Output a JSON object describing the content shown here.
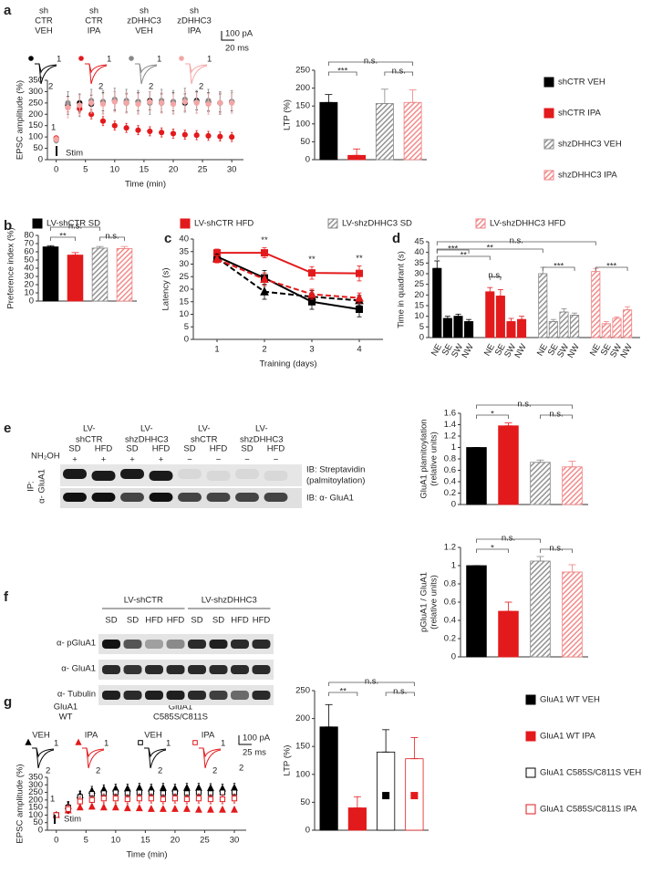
{
  "panels": [
    "a",
    "b",
    "c",
    "d",
    "e",
    "f",
    "g"
  ],
  "chart_data": [
    {
      "type": "line",
      "ylabel": "EPSC amplitude (%)",
      "xlabel": "Time (min)",
      "x": [
        0,
        2,
        4,
        6,
        8,
        10,
        12,
        14,
        16,
        18,
        20,
        22,
        24,
        26,
        28,
        30
      ],
      "xlim": [
        -1.5,
        32
      ],
      "xticks": [
        0,
        5,
        10,
        15,
        20,
        25,
        30
      ],
      "ylim": [
        0,
        350
      ],
      "yticks": [
        0,
        50,
        100,
        150,
        200,
        250,
        300,
        350
      ],
      "series": [
        {
          "color": "#000000",
          "marker": "circle",
          "values": [
            90,
            240,
            250,
            245,
            255,
            260,
            250,
            255,
            260,
            250,
            255,
            250,
            260,
            255,
            250,
            255
          ],
          "errors": [
            12,
            40,
            40,
            40,
            40,
            40,
            40,
            40,
            40,
            40,
            40,
            40,
            40,
            40,
            40,
            40
          ]
        },
        {
          "color": "#e31a1c",
          "marker": "circle",
          "values": [
            95,
            230,
            225,
            200,
            170,
            150,
            140,
            130,
            125,
            120,
            115,
            110,
            108,
            105,
            102,
            100
          ],
          "errors": [
            10,
            20,
            20,
            20,
            20,
            20,
            20,
            20,
            20,
            20,
            20,
            20,
            20,
            20,
            20,
            20
          ]
        },
        {
          "color": "#888888",
          "marker": "circle",
          "values": [
            85,
            250,
            240,
            260,
            255,
            265,
            260,
            255,
            250,
            260,
            255,
            265,
            255,
            260,
            250,
            255
          ],
          "errors": [
            12,
            50,
            50,
            50,
            50,
            50,
            50,
            50,
            50,
            50,
            50,
            50,
            50,
            50,
            50,
            50
          ]
        },
        {
          "color": "#f4a6a6",
          "marker": "circle",
          "values": [
            90,
            230,
            240,
            250,
            245,
            255,
            250,
            245,
            255,
            250,
            245,
            255,
            250,
            245,
            250,
            250
          ],
          "errors": [
            12,
            45,
            45,
            45,
            45,
            45,
            45,
            45,
            45,
            45,
            45,
            45,
            45,
            45,
            45,
            45
          ]
        }
      ],
      "annotations": [
        "1",
        "Stim"
      ],
      "traces": [
        [
          "sh",
          "CTR",
          "VEH"
        ],
        [
          "sh",
          "CTR",
          "IPA"
        ],
        [
          "sh",
          "zDHHC3",
          "VEH"
        ],
        [
          "sh",
          "zDHHC3",
          "IPA"
        ]
      ],
      "trace_marks": [
        "1",
        "2"
      ],
      "scale": [
        "100 pA",
        "20 ms"
      ]
    },
    {
      "type": "bar",
      "ylabel": "LTP (%)",
      "ylim": [
        0,
        250
      ],
      "yticks": [
        0,
        50,
        100,
        150,
        200,
        250
      ],
      "series": [
        {
          "name": "shCTR VEH",
          "color": "#000000",
          "pattern": "solid",
          "values": [
            160
          ],
          "errors": [
            22
          ]
        },
        {
          "name": "shCTR IPA",
          "color": "#e31a1c",
          "pattern": "solid",
          "values": [
            12
          ],
          "errors": [
            18
          ]
        },
        {
          "name": "shzDHHC3 VEH",
          "color": "#888888",
          "pattern": "hatch",
          "values": [
            157
          ],
          "errors": [
            40
          ]
        },
        {
          "name": "shzDHHC3 IPA",
          "color": "#f08080",
          "pattern": "hatch",
          "values": [
            160
          ],
          "errors": [
            35
          ]
        }
      ],
      "significance": [
        "***",
        "n.s.",
        "n.s."
      ]
    },
    {
      "type": "bar",
      "ylabel": "Preference index (%)",
      "ylim": [
        0,
        80
      ],
      "yticks": [
        0,
        10,
        20,
        30,
        40,
        50,
        60,
        70,
        80
      ],
      "series": [
        {
          "name": "LV-shCTR SD",
          "color": "#000000",
          "pattern": "solid",
          "values": [
            66
          ],
          "errors": [
            1.5
          ]
        },
        {
          "name": "LV-shCTR HFD",
          "color": "#e31a1c",
          "pattern": "solid",
          "values": [
            56
          ],
          "errors": [
            3
          ]
        },
        {
          "name": "LV-shzDHHC3 SD",
          "color": "#888888",
          "pattern": "hatch",
          "values": [
            64.5
          ],
          "errors": [
            2
          ]
        },
        {
          "name": "LV-shzDHHC3 HFD",
          "color": "#f08080",
          "pattern": "hatch",
          "values": [
            64
          ],
          "errors": [
            2.5
          ]
        }
      ],
      "significance": [
        "**",
        "n.s.",
        "n.s."
      ]
    },
    {
      "type": "line",
      "ylabel": "Latency (s)",
      "xlabel": "Training (days)",
      "categories": [
        "1",
        "2",
        "3",
        "4"
      ],
      "ylim": [
        0,
        40
      ],
      "yticks": [
        0,
        5,
        10,
        15,
        20,
        25,
        30,
        35,
        40
      ],
      "lines": true,
      "series": [
        {
          "color": "#000000",
          "marker": "square",
          "dash": false,
          "values": [
            33,
            24.5,
            15,
            12
          ],
          "errors": [
            1.5,
            3,
            3,
            3
          ]
        },
        {
          "color": "#e31a1c",
          "marker": "square",
          "dash": false,
          "values": [
            34.5,
            34.5,
            26.5,
            26.3
          ],
          "errors": [
            1.5,
            2,
            2.5,
            3
          ]
        },
        {
          "color": "#000000",
          "marker": "triangle",
          "dash": true,
          "values": [
            32.5,
            19,
            17,
            15.5
          ],
          "errors": [
            1.5,
            3,
            2.5,
            2
          ]
        },
        {
          "color": "#e31a1c",
          "marker": "triangle",
          "dash": true,
          "values": [
            32,
            24,
            18,
            16.5
          ],
          "errors": [
            1.5,
            2.5,
            2,
            2
          ]
        }
      ],
      "annotations": [
        "**",
        "**",
        "**"
      ]
    },
    {
      "type": "grouped-bar",
      "ylabel": "Time in quadrant (s)",
      "categories": [
        "NE",
        "SE",
        "SW",
        "NW"
      ],
      "ylim": [
        0,
        45
      ],
      "yticks": [
        0,
        5,
        10,
        15,
        20,
        25,
        30,
        35,
        40,
        45
      ],
      "series": [
        {
          "color": "#000000",
          "pattern": "solid",
          "values": [
            32.5,
            9,
            10,
            7.5
          ],
          "errors": [
            3.5,
            1,
            1,
            1
          ]
        },
        {
          "color": "#e31a1c",
          "pattern": "solid",
          "values": [
            21.5,
            19.5,
            7.5,
            8.5
          ],
          "errors": [
            2,
            3,
            1.5,
            1.5
          ]
        },
        {
          "color": "#888888",
          "pattern": "hatch",
          "values": [
            30,
            7.5,
            12,
            10.5
          ],
          "errors": [
            3,
            1,
            1.5,
            1
          ]
        },
        {
          "color": "#f08080",
          "pattern": "hatch",
          "values": [
            31,
            6.5,
            9,
            13
          ],
          "errors": [
            1.5,
            1,
            0.7,
            1.5
          ]
        }
      ],
      "significance": [
        "n.s.",
        "**",
        "**",
        "***",
        "n.s.",
        "***",
        "***"
      ]
    },
    {
      "type": "bar",
      "ylabel": [
        "GluA1 plamitoylation",
        "(relative units)"
      ],
      "ylim": [
        0,
        1.6
      ],
      "yticks": [
        0,
        0.2,
        0.4,
        0.6,
        0.8,
        1,
        1.2,
        1.4,
        1.6
      ],
      "series": [
        {
          "color": "#000000",
          "pattern": "solid",
          "values": [
            1
          ],
          "errors": [
            0
          ]
        },
        {
          "color": "#e31a1c",
          "pattern": "solid",
          "values": [
            1.38
          ],
          "errors": [
            0.05
          ]
        },
        {
          "color": "#888888",
          "pattern": "hatch",
          "values": [
            0.74
          ],
          "errors": [
            0.04
          ]
        },
        {
          "color": "#f08080",
          "pattern": "hatch",
          "values": [
            0.66
          ],
          "errors": [
            0.1
          ]
        }
      ],
      "significance": [
        "*",
        "n.s.",
        "n.s."
      ]
    },
    {
      "type": "bar",
      "ylabel": [
        "pGluA1 / GluA1",
        "(relative units)"
      ],
      "ylim": [
        0,
        1.2
      ],
      "yticks": [
        0,
        0.2,
        0.4,
        0.6,
        0.8,
        1,
        1.2
      ],
      "series": [
        {
          "color": "#000000",
          "pattern": "solid",
          "values": [
            1
          ],
          "errors": [
            0
          ]
        },
        {
          "color": "#e31a1c",
          "pattern": "solid",
          "values": [
            0.5
          ],
          "errors": [
            0.1
          ]
        },
        {
          "color": "#888888",
          "pattern": "hatch",
          "values": [
            1.05
          ],
          "errors": [
            0.05
          ]
        },
        {
          "color": "#f08080",
          "pattern": "hatch",
          "values": [
            0.93
          ],
          "errors": [
            0.08
          ]
        }
      ],
      "significance": [
        "*",
        "n.s.",
        "n.s."
      ]
    },
    {
      "type": "line",
      "ylabel": "EPSC amplitude (%)",
      "xlabel": "Time (min)",
      "x": [
        0,
        2,
        4,
        6,
        8,
        10,
        12,
        14,
        16,
        18,
        20,
        22,
        24,
        26,
        28,
        30
      ],
      "xlim": [
        -1.5,
        32
      ],
      "xticks": [
        0,
        5,
        10,
        15,
        20,
        25,
        30
      ],
      "ylim": [
        0,
        350
      ],
      "yticks": [
        0,
        50,
        100,
        150,
        200,
        250,
        300,
        350
      ],
      "series": [
        {
          "color": "#000000",
          "marker": "triangle",
          "filled": true,
          "values": [
            100,
            160,
            230,
            260,
            270,
            275,
            275,
            280,
            275,
            280,
            275,
            280,
            280,
            278,
            275,
            280
          ],
          "errors": [
            10,
            30,
            30,
            30,
            30,
            30,
            30,
            30,
            30,
            30,
            30,
            30,
            30,
            30,
            30,
            30
          ]
        },
        {
          "color": "#e31a1c",
          "marker": "triangle",
          "filled": true,
          "values": [
            100,
            130,
            150,
            155,
            150,
            150,
            145,
            145,
            140,
            140,
            140,
            140,
            135,
            135,
            135,
            135
          ],
          "errors": [
            10,
            15,
            15,
            15,
            15,
            15,
            15,
            15,
            15,
            15,
            15,
            15,
            15,
            15,
            15,
            15
          ]
        },
        {
          "color": "#000000",
          "marker": "square",
          "filled": false,
          "values": [
            100,
            150,
            220,
            240,
            245,
            250,
            245,
            250,
            250,
            245,
            250,
            245,
            250,
            245,
            250,
            250
          ],
          "errors": [
            10,
            35,
            35,
            35,
            35,
            35,
            35,
            35,
            35,
            35,
            35,
            35,
            35,
            35,
            35,
            35
          ]
        },
        {
          "color": "#e31a1c",
          "marker": "square",
          "filled": false,
          "values": [
            100,
            140,
            190,
            200,
            210,
            210,
            205,
            210,
            210,
            205,
            210,
            205,
            210,
            205,
            205,
            210
          ],
          "errors": [
            10,
            30,
            30,
            30,
            30,
            30,
            30,
            30,
            30,
            30,
            30,
            30,
            30,
            30,
            30,
            30
          ]
        }
      ],
      "annotations": [
        "1",
        "2",
        "Stim"
      ],
      "trace_groups": [
        [
          "GluA1",
          "WT"
        ],
        [
          "GluA1",
          "C585S/C811S"
        ]
      ],
      "traces": [
        [
          "VEH"
        ],
        [
          "IPA"
        ],
        [
          "VEH"
        ],
        [
          "IPA"
        ]
      ],
      "trace_marks": [
        "1",
        "2"
      ],
      "scale": [
        "100 pA",
        "25 ms"
      ]
    },
    {
      "type": "bar",
      "ylabel": "LTP (%)",
      "ylim": [
        0,
        250
      ],
      "yticks": [
        0,
        50,
        100,
        150,
        200,
        250
      ],
      "series": [
        {
          "name": "GluA1 WT VEH",
          "color": "#000000",
          "pattern": "solid",
          "values": [
            185
          ],
          "errors": [
            40
          ]
        },
        {
          "name": "GluA1 WT IPA",
          "color": "#e31a1c",
          "pattern": "solid",
          "values": [
            40
          ],
          "errors": [
            20
          ]
        },
        {
          "name": "GluA1 C585S/C811S VEH",
          "color": "#000000",
          "pattern": "open",
          "values": [
            140
          ],
          "errors": [
            40
          ],
          "marker": [
            62
          ]
        },
        {
          "name": "GluA1 C585S/C811S IPA",
          "color": "#e31a1c",
          "pattern": "open",
          "values": [
            128
          ],
          "errors": [
            38
          ],
          "marker": [
            62
          ]
        }
      ],
      "significance": [
        "**",
        "n.s.",
        "n.s."
      ]
    }
  ],
  "blots": {
    "e": {
      "groups": [
        [
          "LV-",
          "shCTR"
        ],
        [
          "LV-",
          "shzDHHC3"
        ],
        [
          "LV-",
          "shCTR"
        ],
        [
          "LV-",
          "shzDHHC3"
        ]
      ],
      "lanes": [
        "SD",
        "HFD",
        "SD",
        "HFD",
        "SD",
        "HFD",
        "SD",
        "HFD"
      ],
      "treatment": "NH₂OH",
      "treatment_signs": [
        "+",
        "+",
        "+",
        "+",
        "−",
        "−",
        "−",
        "−"
      ],
      "ip": [
        "IP:",
        "α- GluA1"
      ],
      "rows": [
        [
          "IB: Streptavidin",
          "(palmitoylation)"
        ],
        [
          "IB: α- GluA1"
        ]
      ]
    },
    "f": {
      "groups": [
        "LV-shCTR",
        "LV-shzDHHC3"
      ],
      "lanes": [
        "SD",
        "SD",
        "HFD",
        "HFD",
        "SD",
        "SD",
        "HFD",
        "HFD"
      ],
      "rows": [
        "α- pGluA1",
        "α- GluA1",
        "α- Tubulin"
      ]
    }
  }
}
